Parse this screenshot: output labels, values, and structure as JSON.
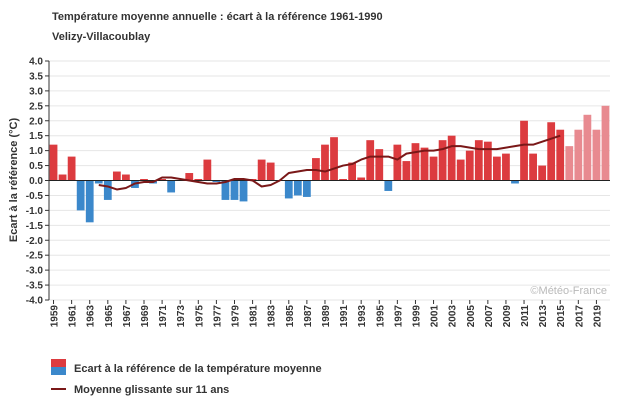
{
  "chart_data": {
    "type": "bar",
    "title": "Température moyenne annuelle : écart à la référence 1961-1990",
    "subtitle": "Velizy-Villacoublay",
    "ylabel": "Ecart à la référence (°C)",
    "xlabel": "",
    "ylim": [
      -4.0,
      4.0
    ],
    "ytick_step": 0.5,
    "grid": true,
    "credit": "©Météo-France",
    "x": [
      1959,
      1960,
      1961,
      1962,
      1963,
      1964,
      1965,
      1966,
      1967,
      1968,
      1969,
      1970,
      1971,
      1972,
      1973,
      1974,
      1975,
      1976,
      1977,
      1978,
      1979,
      1980,
      1981,
      1982,
      1983,
      1984,
      1985,
      1986,
      1987,
      1988,
      1989,
      1990,
      1991,
      1992,
      1993,
      1994,
      1995,
      1996,
      1997,
      1998,
      1999,
      2000,
      2001,
      2002,
      2003,
      2004,
      2005,
      2006,
      2007,
      2008,
      2009,
      2010,
      2011,
      2012,
      2013,
      2014,
      2015,
      2016,
      2017,
      2018,
      2019,
      2020
    ],
    "xtick_labels": [
      "1959",
      "1961",
      "1963",
      "1965",
      "1967",
      "1969",
      "1971",
      "1973",
      "1975",
      "1977",
      "1979",
      "1981",
      "1983",
      "1985",
      "1987",
      "1989",
      "1991",
      "1993",
      "1995",
      "1997",
      "1999",
      "2001",
      "2003",
      "2005",
      "2007",
      "2009",
      "2011",
      "2013",
      "2015",
      "2017",
      "2019"
    ],
    "series": [
      {
        "name": "Ecart à la référence de la température moyenne",
        "values": [
          1.2,
          0.2,
          0.8,
          -1.0,
          -1.4,
          -0.1,
          -0.65,
          0.3,
          0.2,
          -0.25,
          0.05,
          -0.1,
          0.05,
          -0.4,
          0.0,
          0.25,
          0.05,
          0.7,
          -0.05,
          -0.65,
          -0.65,
          -0.7,
          0.05,
          0.7,
          0.6,
          0.0,
          -0.6,
          -0.5,
          -0.55,
          0.75,
          1.2,
          1.45,
          0.05,
          0.6,
          0.1,
          1.35,
          1.05,
          -0.35,
          1.2,
          0.65,
          1.25,
          1.1,
          0.8,
          1.35,
          1.5,
          0.7,
          1.0,
          1.35,
          1.3,
          0.8,
          0.9,
          -0.1,
          2.0,
          0.9,
          0.5,
          1.95,
          1.7,
          1.15,
          1.7,
          2.2,
          1.7,
          2.5
        ],
        "colors": {
          "positive": "#dc3b3f",
          "negative": "#3b88cb",
          "positive_recent": "#e88a90",
          "negative_recent": "#90bce0"
        },
        "recent_from": 2016
      },
      {
        "name": "Moyenne glissante sur 11 ans",
        "x": [
          1964,
          1965,
          1966,
          1967,
          1968,
          1969,
          1970,
          1971,
          1972,
          1973,
          1974,
          1975,
          1976,
          1977,
          1978,
          1979,
          1980,
          1981,
          1982,
          1983,
          1984,
          1985,
          1986,
          1987,
          1988,
          1989,
          1990,
          1991,
          1992,
          1993,
          1994,
          1995,
          1996,
          1997,
          1998,
          1999,
          2000,
          2001,
          2002,
          2003,
          2004,
          2005,
          2006,
          2007,
          2008,
          2009,
          2010,
          2011,
          2012,
          2013,
          2014,
          2015
        ],
        "values": [
          -0.15,
          -0.2,
          -0.3,
          -0.25,
          -0.1,
          -0.05,
          -0.05,
          0.1,
          0.1,
          0.05,
          0.0,
          -0.05,
          -0.1,
          -0.1,
          -0.05,
          0.05,
          0.05,
          0.0,
          -0.2,
          -0.15,
          0.0,
          0.25,
          0.3,
          0.35,
          0.35,
          0.3,
          0.4,
          0.5,
          0.55,
          0.7,
          0.8,
          0.8,
          0.8,
          0.7,
          0.9,
          0.95,
          1.0,
          1.0,
          1.05,
          1.15,
          1.15,
          1.1,
          1.05,
          1.05,
          1.05,
          1.1,
          1.15,
          1.2,
          1.2,
          1.3,
          1.4,
          1.5
        ],
        "color": "#7a1818"
      }
    ],
    "legend": {
      "position": "bottom-left",
      "bar_label": "Ecart à la référence de la température moyenne",
      "line_label": "Moyenne glissante sur 11 ans"
    }
  }
}
